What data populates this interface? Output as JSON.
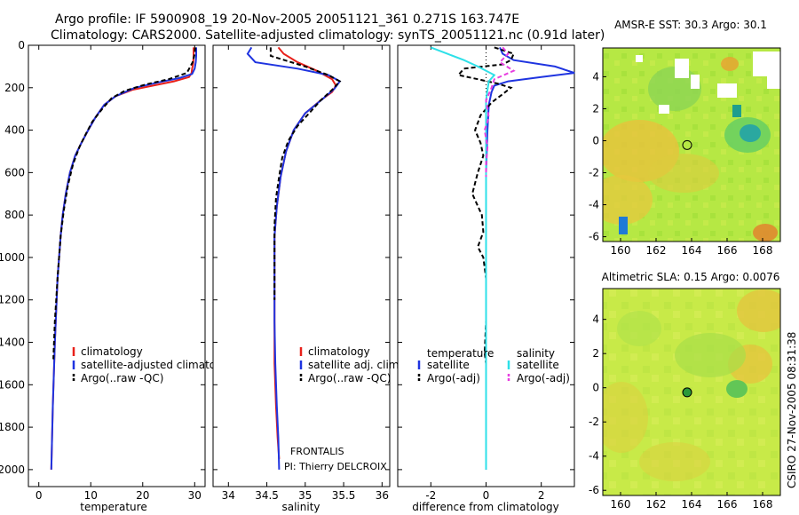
{
  "header": {
    "line1": "Argo profile: IF 5900908_19 20-Nov-2005 20051121_361 0.271S 163.747E",
    "line2": "Climatology: CARS2000. Satellite-adjusted climatology: synTS_20051121.nc (0.91d later)"
  },
  "side_text": "CSIRO 27-Nov-2005 08:31:38",
  "colors": {
    "climatology": "#e8201a",
    "satellite": "#1f34e0",
    "argo": "#000000",
    "salinity_satellite": "#2ee0e8",
    "salinity_argo": "#e83fe0"
  },
  "chart_data": [
    {
      "id": "temperature",
      "type": "line",
      "xlabel": "temperature",
      "ylabel": "",
      "xlim": [
        -2,
        32
      ],
      "ylim": [
        2080,
        0
      ],
      "xticks": [
        0,
        10,
        20,
        30
      ],
      "yticks": [
        0,
        200,
        400,
        600,
        800,
        1000,
        1200,
        1400,
        1600,
        1800,
        2000
      ],
      "series": [
        {
          "name": "climatology",
          "color": "#e8201a",
          "dash": "",
          "x": [
            29.8,
            29.8,
            29.7,
            29.5,
            29.4,
            28.9,
            26.0,
            22.0,
            18.0,
            14.8,
            12.6,
            10.9,
            9.5,
            8.2,
            7.0,
            6.0,
            5.2,
            4.6,
            4.2,
            3.6,
            3.1,
            2.7,
            2.4
          ],
          "y": [
            10,
            50,
            90,
            110,
            130,
            150,
            170,
            190,
            210,
            240,
            280,
            340,
            400,
            460,
            520,
            600,
            700,
            800,
            900,
            1100,
            1400,
            1700,
            2000
          ]
        },
        {
          "name": "satellite-adjusted climatology",
          "color": "#1f34e0",
          "dash": "",
          "x": [
            30.3,
            30.3,
            30.2,
            30.0,
            29.5,
            27.0,
            23.0,
            18.5,
            14.8,
            12.6,
            10.9,
            9.5,
            8.2,
            7.0,
            6.0,
            5.2,
            4.6,
            4.2,
            3.6,
            3.1,
            2.7,
            2.4
          ],
          "y": [
            10,
            50,
            80,
            110,
            135,
            155,
            175,
            200,
            240,
            280,
            340,
            400,
            460,
            520,
            600,
            700,
            800,
            900,
            1100,
            1400,
            1700,
            2000
          ]
        },
        {
          "name": "Argo(..raw -QC)",
          "color": "#000000",
          "dash": "5,3",
          "x": [
            30.1,
            30.0,
            29.6,
            28.5,
            25.0,
            20.5,
            16.5,
            14.0,
            12.2,
            10.3,
            9.0,
            7.8,
            6.6,
            5.6,
            4.8,
            4.2,
            3.6,
            3.1,
            2.8
          ],
          "y": [
            10,
            40,
            80,
            130,
            160,
            185,
            215,
            250,
            300,
            360,
            420,
            480,
            560,
            660,
            780,
            900,
            1100,
            1300,
            1480
          ]
        }
      ],
      "legend": [
        {
          "label": "climatology",
          "color": "#e8201a"
        },
        {
          "label": "satellite-adjusted climatology",
          "color": "#1f34e0"
        },
        {
          "label": "Argo(..raw -QC)",
          "color": "#000000"
        }
      ]
    },
    {
      "id": "salinity",
      "type": "line",
      "xlabel": "salinity",
      "xlim": [
        33.8,
        36.1
      ],
      "ylim": [
        2080,
        0
      ],
      "xticks": [
        34,
        34.5,
        35,
        35.5,
        36
      ],
      "series": [
        {
          "name": "climatology",
          "color": "#e8201a",
          "dash": "",
          "x": [
            34.65,
            34.72,
            34.9,
            35.15,
            35.35,
            35.4,
            35.35,
            35.2,
            35.0,
            34.85,
            34.75,
            34.68,
            34.63,
            34.6,
            34.6,
            34.6,
            34.6,
            34.62,
            34.64,
            34.66
          ],
          "y": [
            10,
            40,
            80,
            120,
            160,
            190,
            220,
            260,
            320,
            400,
            500,
            620,
            760,
            900,
            1100,
            1300,
            1500,
            1700,
            1850,
            1950
          ]
        },
        {
          "name": "satellite adj. clim.",
          "color": "#1f34e0",
          "dash": "",
          "x": [
            34.3,
            34.25,
            34.35,
            34.9,
            35.3,
            35.45,
            35.38,
            35.22,
            35.0,
            34.85,
            34.75,
            34.68,
            34.63,
            34.6,
            34.6,
            34.6,
            34.61,
            34.63,
            34.65,
            34.66
          ],
          "y": [
            10,
            40,
            80,
            110,
            140,
            170,
            205,
            255,
            320,
            400,
            500,
            620,
            760,
            900,
            1100,
            1300,
            1500,
            1700,
            1850,
            2000
          ]
        },
        {
          "name": "Argo(..raw -QC)",
          "color": "#000000",
          "dash": "5,3",
          "x": [
            34.55,
            34.55,
            35.0,
            35.3,
            35.45,
            35.35,
            35.2,
            35.05,
            34.9,
            34.78,
            34.7,
            34.66,
            34.62,
            34.6,
            34.6,
            34.6
          ],
          "y": [
            10,
            50,
            100,
            140,
            170,
            210,
            260,
            320,
            380,
            450,
            530,
            620,
            720,
            850,
            1000,
            1200
          ]
        }
      ],
      "legend": [
        {
          "label": "climatology",
          "color": "#e8201a"
        },
        {
          "label": "satellite adj. clim.",
          "color": "#1f34e0"
        },
        {
          "label": "Argo(..raw -QC)",
          "color": "#000000"
        }
      ],
      "annotation": [
        "FRONTALIS",
        "PI: Thierry DELCROIX"
      ]
    },
    {
      "id": "difference",
      "type": "line",
      "xlabel": "difference from climatology",
      "xlim": [
        -3.2,
        3.2
      ],
      "ylim": [
        2080,
        0
      ],
      "xticks": [
        -2,
        0,
        2
      ],
      "series": [
        {
          "name": "temperature satellite",
          "color": "#1f34e0",
          "dash": "",
          "x": [
            0.5,
            0.6,
            1.0,
            2.5,
            3.2,
            2.0,
            0.8,
            0.3,
            0.2,
            0.1,
            0.05,
            0,
            0,
            0,
            0,
            0,
            0,
            0
          ],
          "y": [
            10,
            40,
            70,
            100,
            130,
            150,
            170,
            190,
            220,
            280,
            400,
            600,
            800,
            1000,
            1200,
            1500,
            1800,
            2000
          ]
        },
        {
          "name": "temperature Argo(-adj)",
          "color": "#000000",
          "dash": "5,3",
          "x": [
            0.3,
            1.0,
            0.9,
            0.6,
            -0.8,
            -1.0,
            -0.3,
            0.4,
            0.9,
            0.6,
            0.2,
            -0.2,
            -0.4,
            -0.2,
            -0.1,
            -0.3,
            -0.5,
            -0.15,
            -0.1,
            -0.3,
            -0.1,
            0,
            0,
            -0.05,
            0
          ],
          "y": [
            10,
            40,
            70,
            90,
            110,
            140,
            160,
            180,
            200,
            230,
            270,
            330,
            400,
            460,
            520,
            600,
            700,
            800,
            880,
            950,
            1000,
            1100,
            1300,
            1450,
            1500
          ]
        },
        {
          "name": "salinity satellite",
          "color": "#2ee0e8",
          "dash": "",
          "x": [
            -2.0,
            -1.4,
            -0.8,
            -0.3,
            0.3,
            0.1,
            0.05,
            0,
            0,
            0,
            0,
            0,
            0,
            0
          ],
          "y": [
            10,
            40,
            70,
            100,
            140,
            170,
            210,
            260,
            400,
            700,
            1000,
            1400,
            1800,
            2000
          ]
        },
        {
          "name": "salinity Argo(-adj)",
          "color": "#e83fe0",
          "dash": "5,3",
          "x": [
            0.6,
            0.8,
            0.5,
            1.0,
            0.3,
            0.2,
            0,
            0.1,
            -0.05,
            0.05,
            0,
            0
          ],
          "y": [
            10,
            40,
            80,
            120,
            160,
            200,
            260,
            340,
            400,
            480,
            560,
            620
          ]
        }
      ],
      "legend": [
        {
          "group": "temperature",
          "label": "satellite",
          "color": "#1f34e0"
        },
        {
          "group": "temperature",
          "label": "Argo(-adj)",
          "color": "#000000"
        },
        {
          "group": "salinity",
          "label": "satellite",
          "color": "#2ee0e8"
        },
        {
          "group": "salinity",
          "label": "Argo(-adj)",
          "color": "#e83fe0"
        }
      ]
    },
    {
      "id": "sst-map",
      "type": "heatmap",
      "title": "AMSR-E SST: 30.3 Argo: 30.1",
      "xlim": [
        159,
        169
      ],
      "ylim": [
        -6.3,
        5.8
      ],
      "xticks": [
        160,
        162,
        164,
        166,
        168
      ],
      "yticks": [
        -6,
        -4,
        -2,
        0,
        2,
        4
      ],
      "marker": {
        "lon": 163.75,
        "lat": -0.27,
        "fill": "none"
      }
    },
    {
      "id": "sla-map",
      "type": "heatmap",
      "title": "Altimetric SLA: 0.15 Argo: 0.0076",
      "xlim": [
        159,
        169
      ],
      "ylim": [
        -6.3,
        5.8
      ],
      "xticks": [
        160,
        162,
        164,
        166,
        168
      ],
      "yticks": [
        -6,
        -4,
        -2,
        0,
        2,
        4
      ],
      "marker": {
        "lon": 163.75,
        "lat": -0.27,
        "fill": "#2a9a3a"
      }
    }
  ]
}
